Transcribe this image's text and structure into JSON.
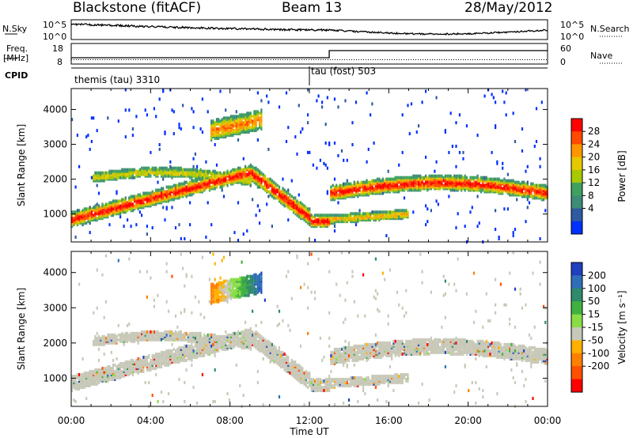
{
  "header": {
    "radar": "Blackstone (fitACF)",
    "beam": "Beam 13",
    "date": "28/May/2012"
  },
  "status_panels": {
    "nsky_label": "N.Sky",
    "nsearch_label": "N.Search",
    "noise_scale_hi": "10^5",
    "noise_scale_lo": "10^0",
    "freq_label": "Freq.",
    "freq_unit": "[MHz]",
    "freq_ticks": [
      "18",
      "8"
    ],
    "nave_label": "Nave",
    "nave_ticks": [
      "60",
      "0"
    ],
    "cpid_label": "CPID",
    "cpid_segments": [
      {
        "name": "themis (tau) 3310",
        "start_hour": 0,
        "end_hour": 12
      },
      {
        "name": "tau (fost) 503",
        "start_hour": 12,
        "end_hour": 24
      }
    ]
  },
  "chart_data": [
    {
      "type": "heatmap",
      "name": "power",
      "ylabel": "Slant Range [km]",
      "yticks": [
        1000,
        2000,
        3000,
        4000
      ],
      "ylim": [
        200,
        4600
      ],
      "xlim": [
        0,
        24
      ],
      "xlabel": "Time UT",
      "xticks": [
        "00:00",
        "04:00",
        "08:00",
        "12:00",
        "16:00",
        "20:00",
        "00:00"
      ],
      "colorbar_label": "Power [dB]",
      "colorbar_ticks": [
        "28",
        "24",
        "20",
        "16",
        "12",
        "8",
        "4"
      ],
      "colorbar_colors": [
        "#ff0000",
        "#ff4a00",
        "#ff9600",
        "#e6c800",
        "#a8c800",
        "#3fa060",
        "#3c8c78",
        "#2e5aa0",
        "#0030ff"
      ]
    },
    {
      "type": "heatmap",
      "name": "velocity",
      "ylabel": "Slant Range [km]",
      "yticks": [
        1000,
        2000,
        3000,
        4000
      ],
      "ylim": [
        200,
        4600
      ],
      "xlim": [
        0,
        24
      ],
      "xlabel": "Time UT",
      "xticks": [
        "00:00",
        "04:00",
        "08:00",
        "12:00",
        "16:00",
        "20:00",
        "00:00"
      ],
      "colorbar_label": "Velocity [m s⁻¹]",
      "colorbar_ticks": [
        "200",
        "100",
        "50",
        "15",
        "-15",
        "-50",
        "-100",
        "-200"
      ],
      "colorbar_colors": [
        "#2040c0",
        "#2f6fb8",
        "#2e8a6a",
        "#40b040",
        "#88dd44",
        "#c8c8b8",
        "#ffb000",
        "#ff8000",
        "#ff5000",
        "#ff0000"
      ]
    }
  ]
}
